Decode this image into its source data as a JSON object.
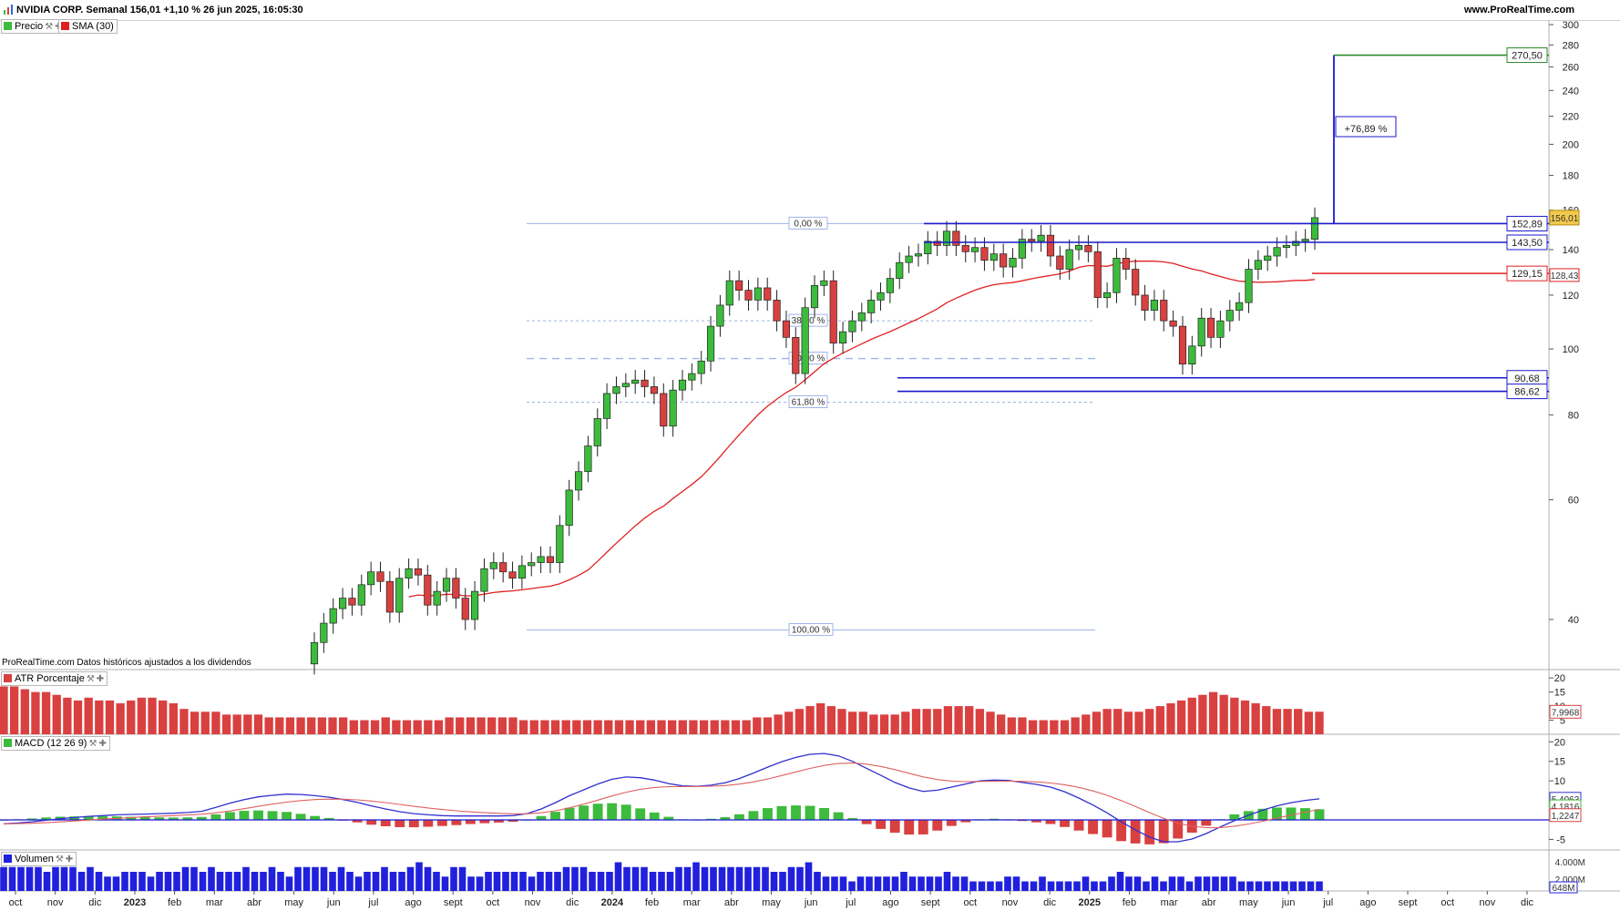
{
  "header": {
    "title": "NVIDIA CORP. Semanal 156,01 +1,10 % 26 jun 2025, 16:05:30",
    "site": "www.ProRealTime.com"
  },
  "legends": {
    "price": "Precio",
    "sma": "SMA (30)",
    "atr": "ATR Porcentaje",
    "macd": "MACD (12 26 9)",
    "volume": "Volumen"
  },
  "footnote": "ProRealTime.com Datos históricos ajustados a los dividendos",
  "colors": {
    "up": "#3dbb3d",
    "down": "#d94040",
    "sma": "#e02020",
    "levels": "#1a1acc",
    "target": "#2a8a2a",
    "fib": "#9fb4e8",
    "macd_line": "#3030d0",
    "signal_line": "#e06060",
    "volume": "#2020dd"
  },
  "chart_data": {
    "type": "candlestick",
    "timeframe": "Semanal",
    "y_scale": "log",
    "y_ticks": [
      40,
      60,
      80,
      100,
      120,
      140,
      160,
      180,
      200,
      220,
      240,
      260,
      280,
      300
    ],
    "x_labels": [
      "oct",
      "nov",
      "dic",
      "2023",
      "feb",
      "mar",
      "abr",
      "may",
      "jun",
      "jul",
      "ago",
      "sept",
      "oct",
      "nov",
      "dic",
      "2024",
      "feb",
      "mar",
      "abr",
      "may",
      "jun",
      "jul",
      "ago",
      "sept",
      "oct",
      "nov",
      "dic",
      "2025",
      "feb",
      "mar",
      "abr",
      "may",
      "jun",
      "jul",
      "ago",
      "sept",
      "oct",
      "nov",
      "dic"
    ],
    "last_price": "156,01",
    "levels": [
      {
        "label": "152,89",
        "value": 152.89
      },
      {
        "label": "143,50",
        "value": 143.5
      },
      {
        "label": "129,15",
        "value": 129.15
      },
      {
        "label": "90,68",
        "value": 90.68
      },
      {
        "label": "86,62",
        "value": 86.62
      }
    ],
    "sma_value": "128,43",
    "target": {
      "label": "270,50",
      "value": 270.5,
      "change_label": "+76,89 %"
    },
    "fibonacci": [
      {
        "label": "0,00 %",
        "value": 152.9
      },
      {
        "label": "38,20 %",
        "value": 110.0
      },
      {
        "label": "50,00 %",
        "value": 96.8
      },
      {
        "label": "61,80 %",
        "value": 83.5
      },
      {
        "label": "100,00 %",
        "value": 38.6
      }
    ],
    "closes": [
      37.0,
      39.5,
      41.5,
      43.0,
      42.0,
      45.0,
      47.0,
      45.5,
      41.0,
      46.0,
      47.5,
      46.5,
      42.0,
      44.0,
      46.0,
      43.0,
      40.0,
      44.0,
      47.5,
      48.5,
      47.0,
      46.0,
      48.0,
      48.5,
      49.5,
      48.5,
      55.0,
      62.0,
      66.0,
      72.0,
      79.0,
      86.0,
      88.0,
      89.0,
      90.0,
      88.0,
      86.0,
      77.0,
      87.0,
      90.0,
      92.0,
      96.0,
      108.0,
      116.0,
      126.0,
      122.0,
      118.0,
      123.0,
      118.0,
      110.0,
      104.0,
      92.0,
      115.0,
      124.0,
      126.0,
      102.0,
      106.0,
      110.0,
      113.0,
      118.0,
      121.0,
      127.0,
      134.0,
      137.0,
      138.0,
      144.0,
      142.0,
      149.0,
      142.0,
      139.0,
      141.0,
      135.0,
      138.0,
      132.0,
      136.0,
      145.0,
      144.0,
      147.0,
      137.0,
      131.0,
      140.0,
      142.0,
      139.0,
      119.0,
      121.0,
      136.0,
      131.0,
      120.0,
      114.0,
      118.0,
      110.0,
      108.0,
      95.0,
      101.0,
      111.0,
      104.0,
      110.0,
      114.0,
      117.0,
      131.0,
      135.0,
      137.0,
      141.0,
      142.0,
      144.0,
      145.0,
      156.01
    ],
    "atr_axis": [
      20,
      15,
      10,
      5
    ],
    "atr_value": "7,9968",
    "atr_values": [
      17,
      17,
      16,
      15,
      15,
      14,
      13,
      12,
      13,
      12,
      12,
      11,
      12,
      13,
      13,
      12,
      11,
      9,
      8,
      8,
      8,
      7,
      7,
      7,
      7,
      6,
      6,
      6,
      6,
      6,
      6,
      6,
      6,
      5,
      5,
      5,
      6,
      5,
      5,
      5,
      5,
      5,
      6,
      6,
      6,
      6,
      6,
      6,
      6,
      5,
      5,
      5,
      5,
      5,
      5,
      5,
      5,
      5,
      5,
      5,
      5,
      5,
      5,
      5,
      5,
      5,
      5,
      5,
      5,
      5,
      5,
      6,
      6,
      7,
      8,
      9,
      10,
      11,
      10,
      9,
      8,
      8,
      7,
      7,
      7,
      8,
      9,
      9,
      9,
      10,
      10,
      10,
      9,
      8,
      7,
      6,
      6,
      5,
      5,
      5,
      5,
      6,
      7,
      8,
      9,
      9,
      8,
      8,
      9,
      10,
      11,
      12,
      13,
      14,
      15,
      14,
      13,
      12,
      11,
      10,
      9,
      9,
      9,
      8,
      8
    ],
    "macd_axis": [
      20,
      15,
      10,
      5,
      -5
    ],
    "macd_value": "5,4063",
    "signal_value": "4,1816",
    "hist_value": "1,2247",
    "macd_line": [
      -1.0,
      -0.8,
      -0.5,
      -0.1,
      0.3,
      0.6,
      0.9,
      1.1,
      1.3,
      1.4,
      1.5,
      1.6,
      1.7,
      1.9,
      2.2,
      3.2,
      4.3,
      5.2,
      5.9,
      6.3,
      6.6,
      6.5,
      6.2,
      5.8,
      5.2,
      4.5,
      3.6,
      2.8,
      2.1,
      1.6,
      1.3,
      1.1,
      1.0,
      1.0,
      1.0,
      1.0,
      1.1,
      1.6,
      2.8,
      4.4,
      6.2,
      7.7,
      9.2,
      10.4,
      11.0,
      10.8,
      10.2,
      9.3,
      8.7,
      8.6,
      8.9,
      9.5,
      10.6,
      12.0,
      13.5,
      14.9,
      16.0,
      16.8,
      17.0,
      16.4,
      15.0,
      13.2,
      11.4,
      9.6,
      8.2,
      7.3,
      7.6,
      8.4,
      9.2,
      10.0,
      10.2,
      10.1,
      9.6,
      9.1,
      8.4,
      7.2,
      5.6,
      3.8,
      1.8,
      -0.5,
      -2.6,
      -4.4,
      -5.6,
      -5.6,
      -4.9,
      -3.5,
      -1.8,
      -0.2,
      1.2,
      2.5,
      3.6,
      4.4,
      5.0,
      5.4
    ]
  },
  "volume_axis": [
    "4.000M",
    "2.000M"
  ],
  "volume_value": "648M",
  "volume_bars": [
    5,
    5,
    5,
    5,
    5,
    4,
    5,
    5,
    5,
    4,
    5,
    4,
    3,
    3,
    4,
    4,
    4,
    3,
    4,
    4,
    4,
    5,
    5,
    4,
    5,
    4,
    4,
    4,
    5,
    4,
    4,
    5,
    4,
    3,
    5,
    5,
    5,
    5,
    4,
    5,
    4,
    3,
    4,
    4,
    5,
    4,
    4,
    5,
    6,
    5,
    4,
    3,
    5,
    5,
    3,
    3,
    4,
    4,
    4,
    4,
    4,
    3,
    4,
    4,
    4,
    5,
    5,
    5,
    4,
    4,
    4,
    6,
    5,
    5,
    5,
    4,
    4,
    4,
    5,
    5,
    6,
    5,
    5,
    5,
    5,
    5,
    5,
    5,
    5,
    4,
    4,
    5,
    5,
    6,
    4,
    3,
    3,
    3,
    2,
    3,
    3,
    3,
    3,
    3,
    4,
    3,
    3,
    3,
    3,
    4,
    3,
    3,
    2,
    2,
    2,
    2,
    3,
    3,
    2,
    2,
    3,
    2,
    2,
    2,
    2,
    3,
    2,
    2,
    3,
    4,
    3,
    3,
    2,
    3,
    2,
    3,
    3,
    2,
    3,
    3,
    3,
    3,
    3,
    2,
    2,
    2,
    2,
    2,
    2,
    2,
    2,
    2,
    2
  ]
}
